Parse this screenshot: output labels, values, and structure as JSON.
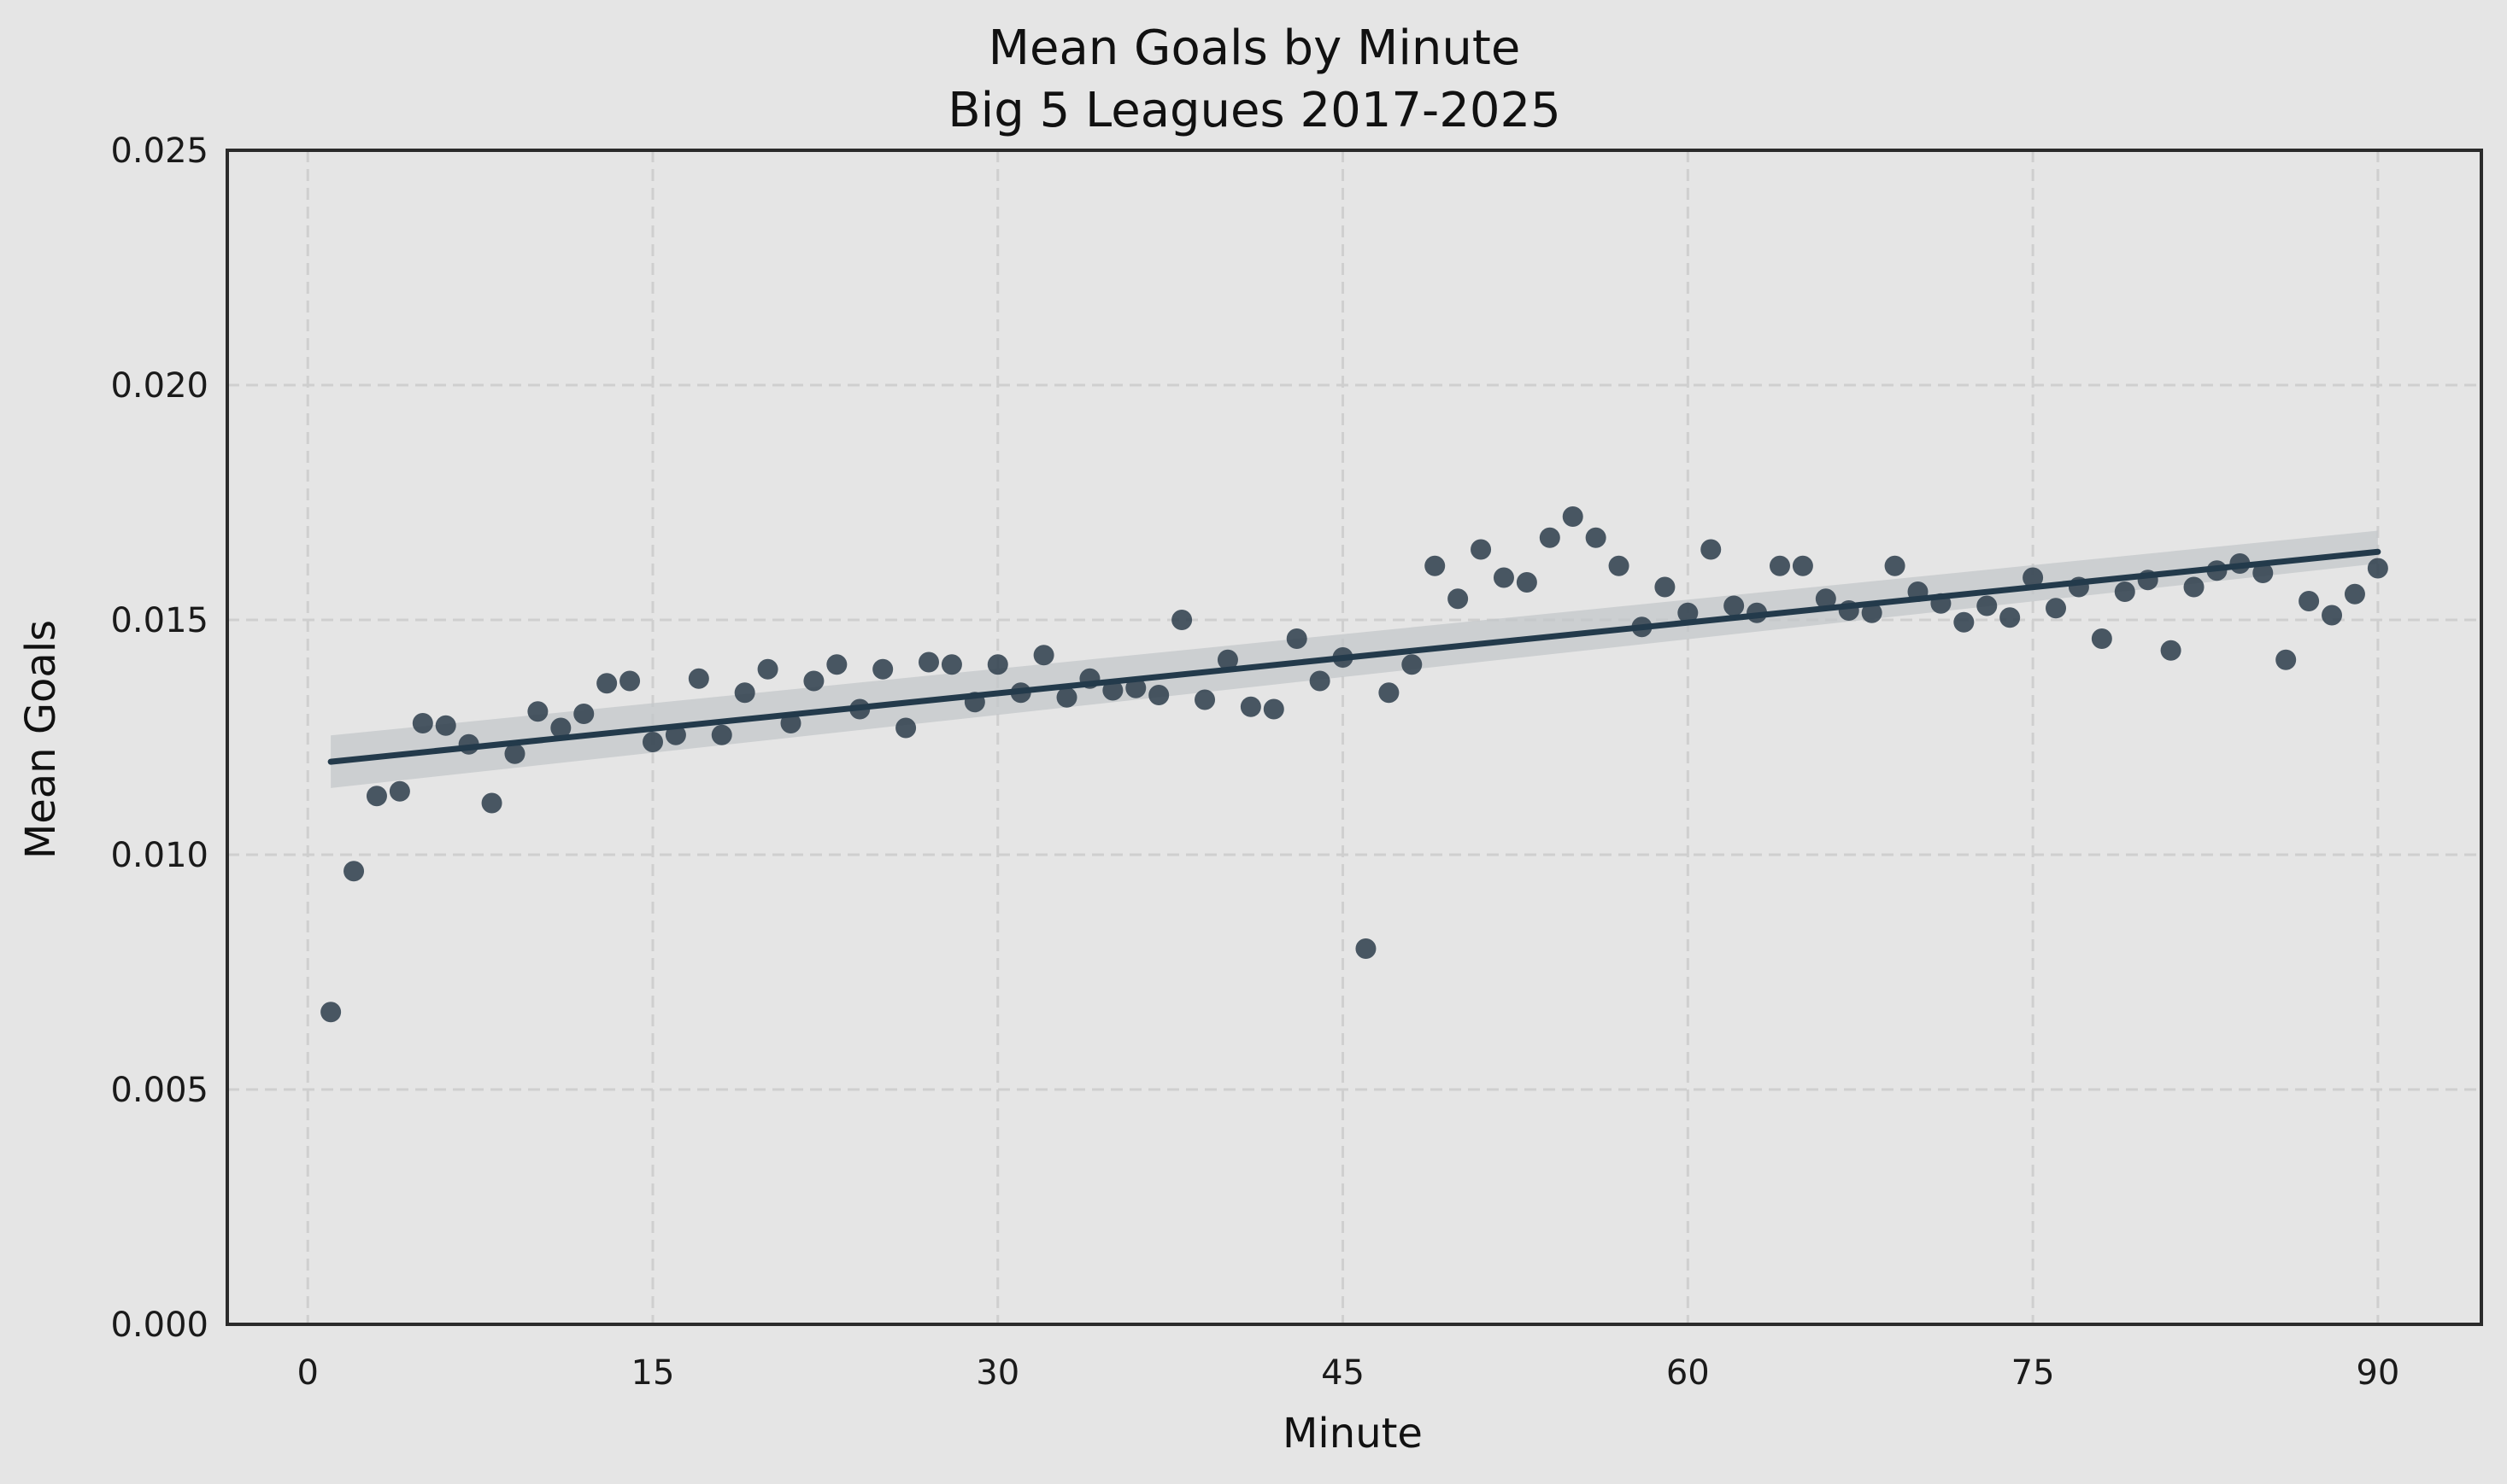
{
  "chart_data": {
    "type": "scatter",
    "title": "Mean Goals by Minute",
    "subtitle": "Big 5 Leagues 2017-2025",
    "xlabel": "Minute",
    "ylabel": "Mean Goals",
    "xlim": [
      -3.5,
      94.5
    ],
    "ylim": [
      0,
      0.025
    ],
    "xticks": [
      0,
      15,
      30,
      45,
      60,
      75,
      90
    ],
    "yticks": [
      0.0,
      0.005,
      0.01,
      0.015,
      0.02,
      0.025
    ],
    "xtick_labels": [
      "0",
      "15",
      "30",
      "45",
      "60",
      "75",
      "90"
    ],
    "ytick_labels": [
      "0.000",
      "0.005",
      "0.010",
      "0.015",
      "0.020",
      "0.025"
    ],
    "grid": true,
    "colors": {
      "points": "#2d3d4b",
      "line": "#233a4b",
      "band": "#c3c7ca",
      "background": "#e5e5e5",
      "grid": "#cfcfcf",
      "axes": "#2b2b2b"
    },
    "series": [
      {
        "x": [
          1,
          2,
          3,
          4,
          5,
          6,
          7,
          8,
          9,
          10,
          11,
          12,
          13,
          14,
          15,
          16,
          17,
          18,
          19,
          20,
          21,
          22,
          23,
          24,
          25,
          26,
          27,
          28,
          29,
          30,
          31,
          32,
          33,
          34,
          35,
          36,
          37,
          38,
          39,
          40,
          41,
          42,
          43,
          44,
          45,
          46,
          47,
          48,
          49,
          50,
          51,
          52,
          53,
          54,
          55,
          56,
          57,
          58,
          59,
          60,
          61,
          62,
          63,
          64,
          65,
          66,
          67,
          68,
          69,
          70,
          71,
          72,
          73,
          74,
          75,
          76,
          77,
          78,
          79,
          80,
          81,
          82,
          83,
          84,
          85,
          86,
          87,
          88,
          89,
          90
        ],
        "y": [
          0.00665,
          0.00965,
          0.01125,
          0.01135,
          0.0128,
          0.01275,
          0.01235,
          0.0111,
          0.01215,
          0.01305,
          0.0127,
          0.013,
          0.01365,
          0.0137,
          0.0124,
          0.01255,
          0.01375,
          0.01255,
          0.01345,
          0.01395,
          0.0128,
          0.0137,
          0.01405,
          0.0131,
          0.01395,
          0.0127,
          0.0141,
          0.01405,
          0.01325,
          0.01405,
          0.01345,
          0.01425,
          0.01335,
          0.01375,
          0.0135,
          0.01355,
          0.0134,
          0.015,
          0.0133,
          0.01415,
          0.01315,
          0.0131,
          0.0146,
          0.0137,
          0.0142,
          0.008,
          0.01345,
          0.01405,
          0.01615,
          0.01545,
          0.0165,
          0.0159,
          0.0158,
          0.01675,
          0.0172,
          0.01675,
          0.01615,
          0.01485,
          0.0157,
          0.01515,
          0.0165,
          0.0153,
          0.01515,
          0.01615,
          0.01615,
          0.01545,
          0.0152,
          0.01515,
          0.01615,
          0.0156,
          0.01535,
          0.01495,
          0.0153,
          0.01505,
          0.0159,
          0.01525,
          0.0157,
          0.0146,
          0.0156,
          0.01585,
          0.01435,
          0.0157,
          0.01605,
          0.0162,
          0.016,
          0.01415,
          0.0154,
          0.0151,
          0.01555,
          0.0161
        ]
      }
    ],
    "regression": {
      "x": [
        1,
        90
      ],
      "y": [
        0.01198,
        0.01645
      ],
      "ci_lower": [
        0.01142,
        0.0162
      ],
      "ci_upper": [
        0.01254,
        0.0169
      ]
    }
  }
}
